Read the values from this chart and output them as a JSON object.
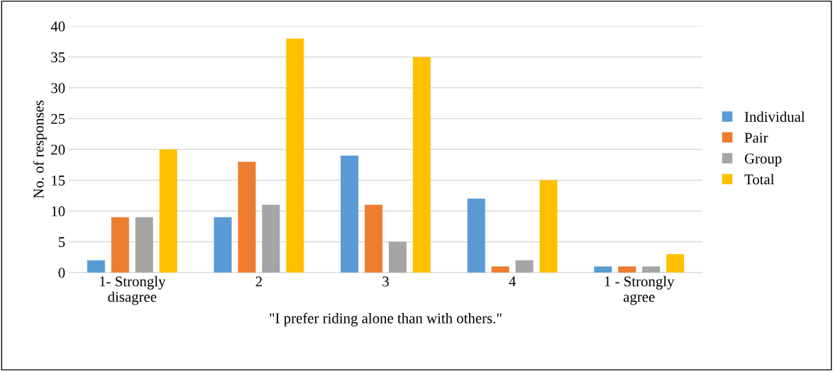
{
  "chart_data": {
    "type": "bar",
    "xlabel": "\"I prefer riding alone than with others.\"",
    "ylabel": "No. of responses",
    "categories": [
      "1- Strongly\ndisagree",
      "2",
      "3",
      "4",
      "1 - Strongly\nagree"
    ],
    "series": [
      {
        "name": "Individual",
        "color": "#5b9bd5",
        "values": [
          2,
          9,
          19,
          12,
          1
        ]
      },
      {
        "name": "Pair",
        "color": "#ed7d31",
        "values": [
          9,
          18,
          11,
          1,
          1
        ]
      },
      {
        "name": "Group",
        "color": "#a5a5a5",
        "values": [
          9,
          11,
          5,
          2,
          1
        ]
      },
      {
        "name": "Total",
        "color": "#ffc000",
        "values": [
          20,
          38,
          35,
          15,
          3
        ]
      }
    ],
    "ylim": [
      0,
      40
    ],
    "yticks": [
      0,
      5,
      10,
      15,
      20,
      25,
      30,
      35,
      40
    ],
    "grid": "y",
    "legend": "right"
  }
}
